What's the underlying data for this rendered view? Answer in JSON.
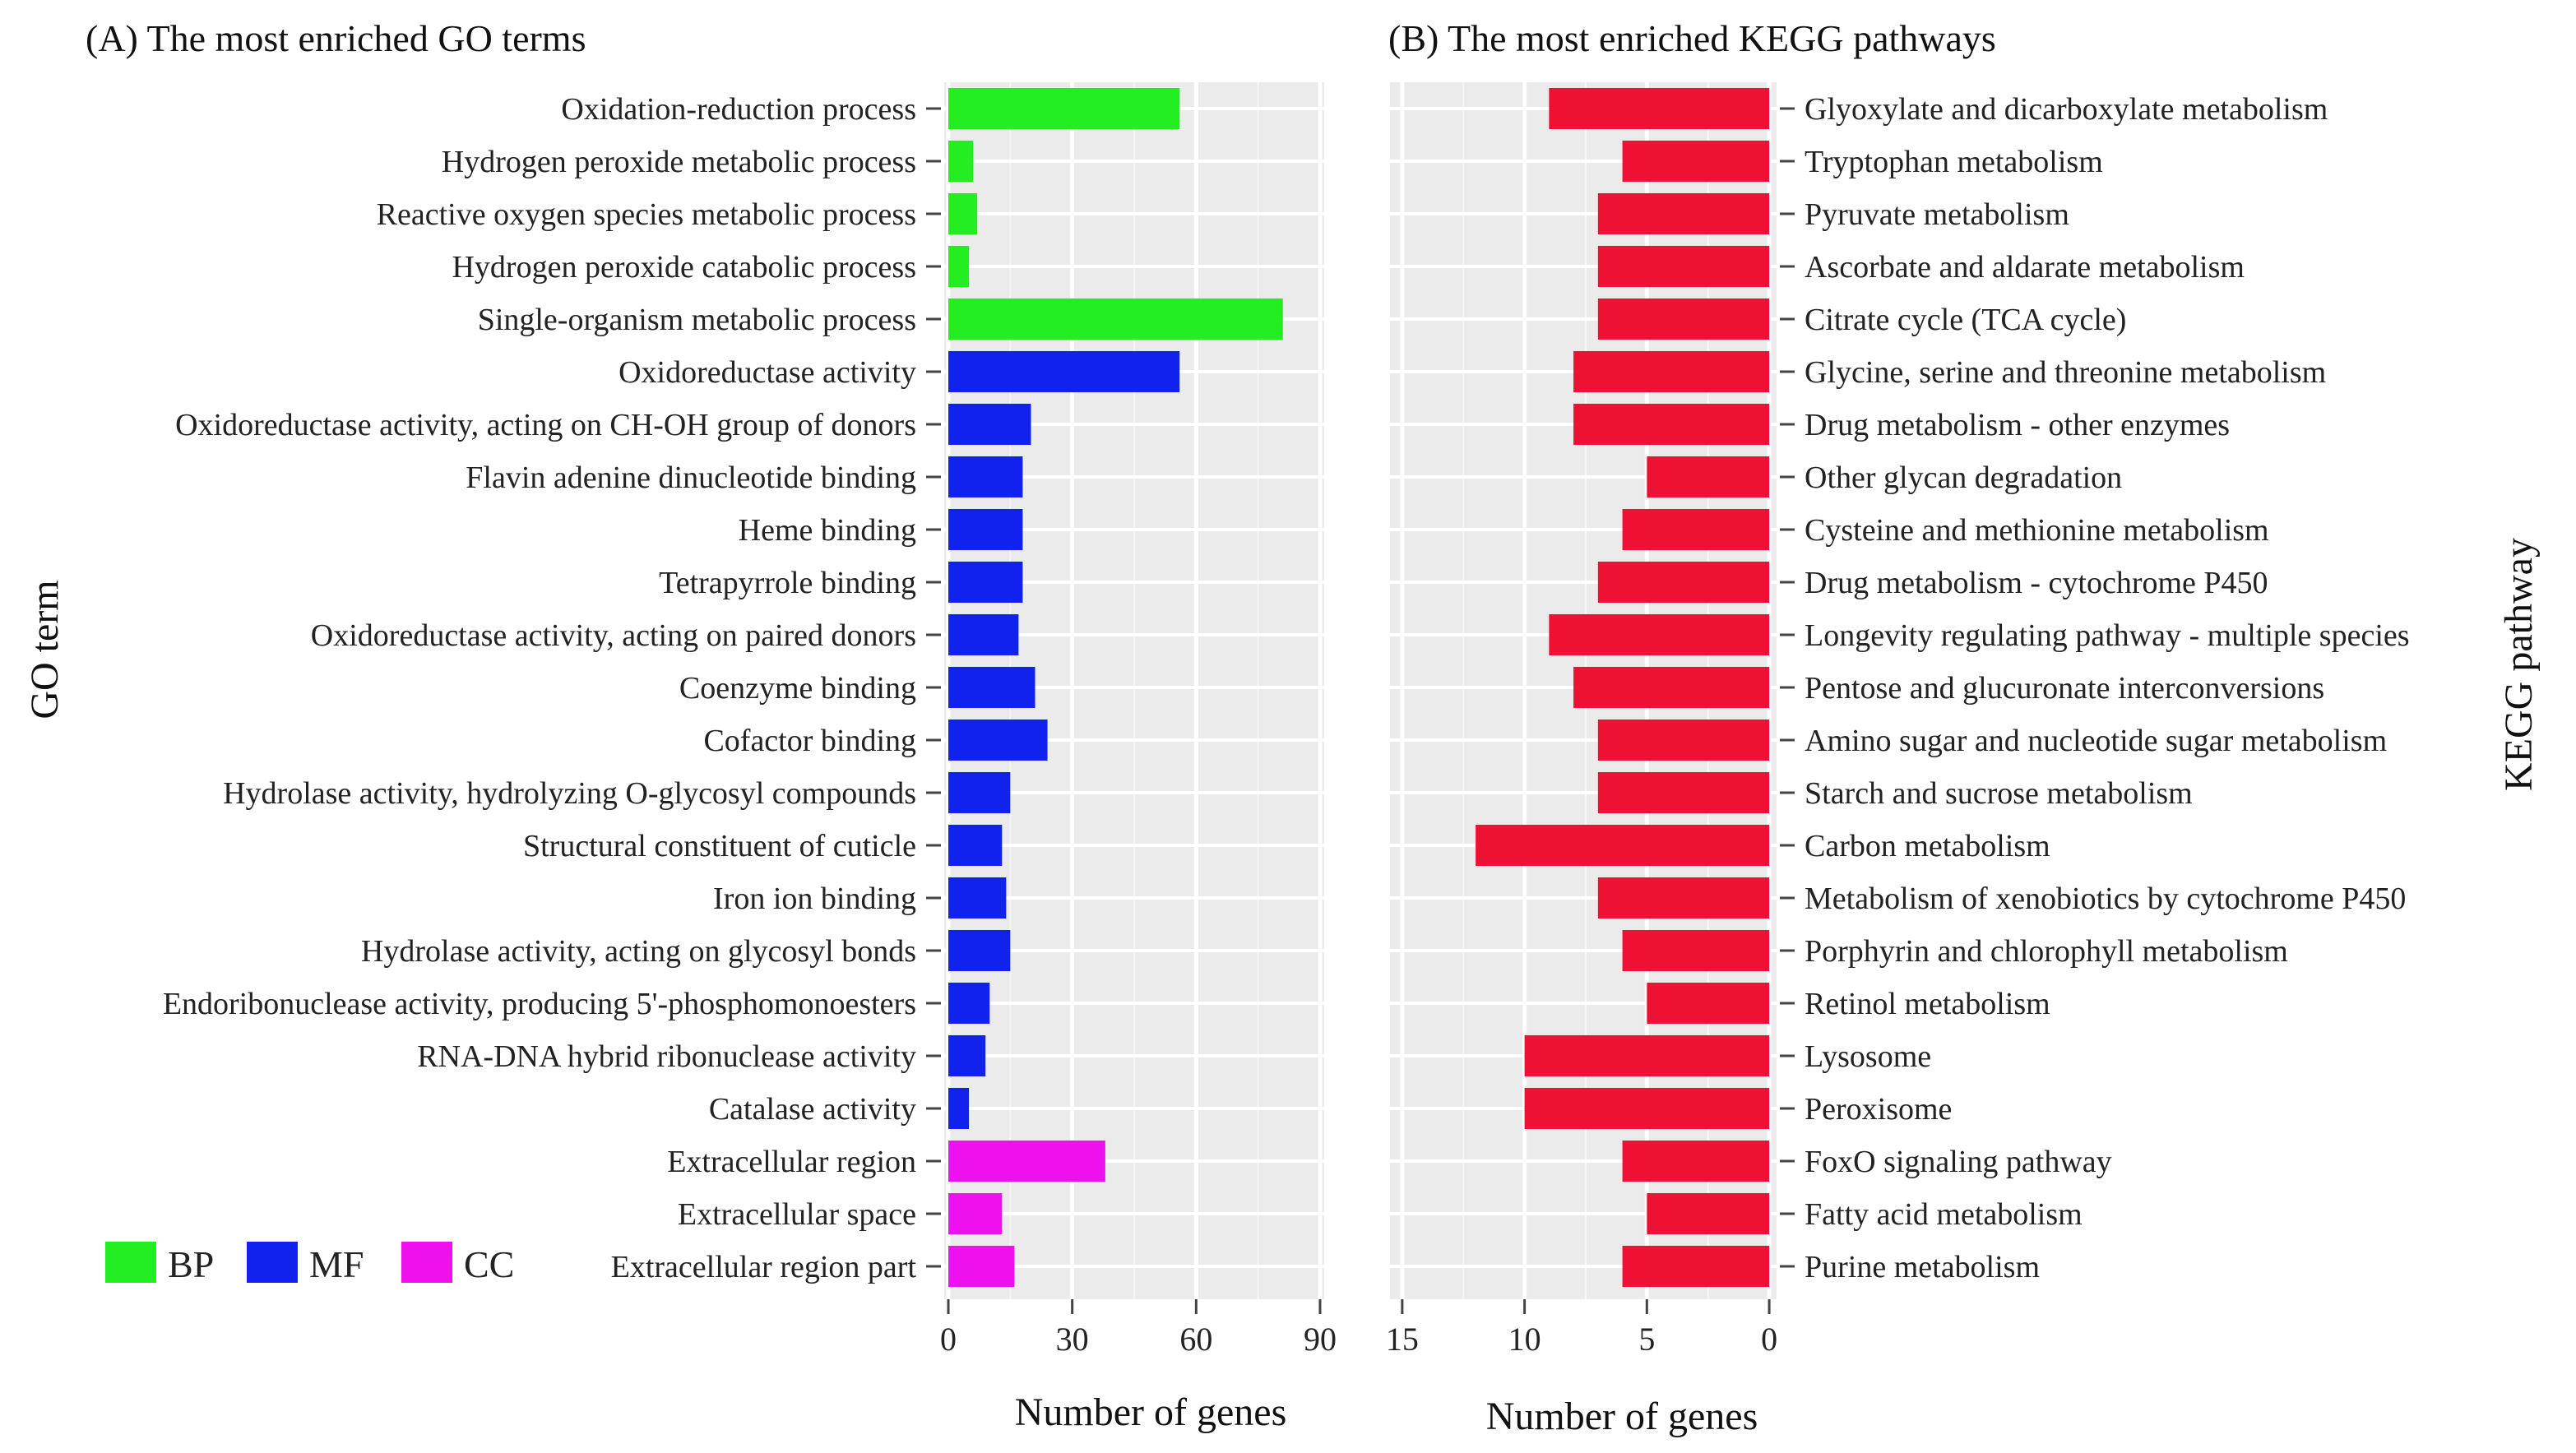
{
  "chart_data": [
    {
      "type": "bar",
      "orientation": "horizontal",
      "title": "(A) The most enriched GO terms",
      "xlabel": "Number of genes",
      "ylabel": "GO term",
      "xlim": [
        -1,
        91
      ],
      "xticks": [
        0,
        30,
        60,
        90
      ],
      "grid": true,
      "legend": {
        "position": "bottom-left",
        "entries": [
          {
            "label": "BP",
            "color": "#22ee22"
          },
          {
            "label": "MF",
            "color": "#1122ee"
          },
          {
            "label": "CC",
            "color": "#ee11ee"
          }
        ]
      },
      "categories": [
        "Oxidation-reduction process",
        "Hydrogen peroxide metabolic process",
        "Reactive oxygen species metabolic process",
        "Hydrogen peroxide catabolic process",
        "Single-organism metabolic process",
        "Oxidoreductase activity",
        "Oxidoreductase activity, acting on CH-OH group of donors",
        "Flavin adenine dinucleotide binding",
        "Heme binding",
        "Tetrapyrrole binding",
        "Oxidoreductase activity, acting on paired donors",
        "Coenzyme binding",
        "Cofactor binding",
        "Hydrolase activity, hydrolyzing O-glycosyl compounds",
        "Structural constituent of cuticle",
        "Iron ion binding",
        "Hydrolase activity, acting on glycosyl bonds",
        "Endoribonuclease activity, producing 5'-phosphomonoesters",
        "RNA-DNA hybrid ribonuclease activity",
        "Catalase activity",
        "Extracellular region",
        "Extracellular space",
        "Extracellular region part"
      ],
      "values": [
        56,
        6,
        7,
        5,
        81,
        56,
        20,
        18,
        18,
        18,
        17,
        21,
        24,
        15,
        13,
        14,
        15,
        10,
        9,
        5,
        38,
        13,
        16
      ],
      "groups": [
        "BP",
        "BP",
        "BP",
        "BP",
        "BP",
        "MF",
        "MF",
        "MF",
        "MF",
        "MF",
        "MF",
        "MF",
        "MF",
        "MF",
        "MF",
        "MF",
        "MF",
        "MF",
        "MF",
        "MF",
        "CC",
        "CC",
        "CC"
      ]
    },
    {
      "type": "bar",
      "orientation": "horizontal",
      "direction": "reversed",
      "title": "(B) The most enriched KEGG pathways",
      "xlabel": "Number of genes",
      "ylabel": "KEGG pathway",
      "xlim": [
        15.5,
        -0.3
      ],
      "xticks": [
        15,
        10,
        5,
        0
      ],
      "grid": true,
      "color": "#ee1133",
      "categories": [
        "Glyoxylate and dicarboxylate metabolism",
        "Tryptophan metabolism",
        "Pyruvate metabolism",
        "Ascorbate and aldarate metabolism",
        "Citrate cycle (TCA cycle)",
        "Glycine, serine and threonine metabolism",
        "Drug metabolism - other enzymes",
        "Other glycan degradation",
        "Cysteine and methionine metabolism",
        "Drug metabolism - cytochrome P450",
        "Longevity regulating pathway - multiple species",
        "Pentose and glucuronate interconversions",
        "Amino sugar and nucleotide sugar metabolism",
        "Starch and sucrose metabolism",
        "Carbon metabolism",
        "Metabolism of xenobiotics by cytochrome P450",
        "Porphyrin and chlorophyll metabolism",
        "Retinol metabolism",
        "Lysosome",
        "Peroxisome",
        "FoxO signaling pathway",
        "Fatty acid metabolism",
        "Purine metabolism"
      ],
      "values": [
        9,
        6,
        7,
        7,
        7,
        8,
        8,
        5,
        6,
        7,
        9,
        8,
        7,
        7,
        12,
        7,
        6,
        5,
        10,
        10,
        6,
        5,
        6
      ]
    }
  ]
}
